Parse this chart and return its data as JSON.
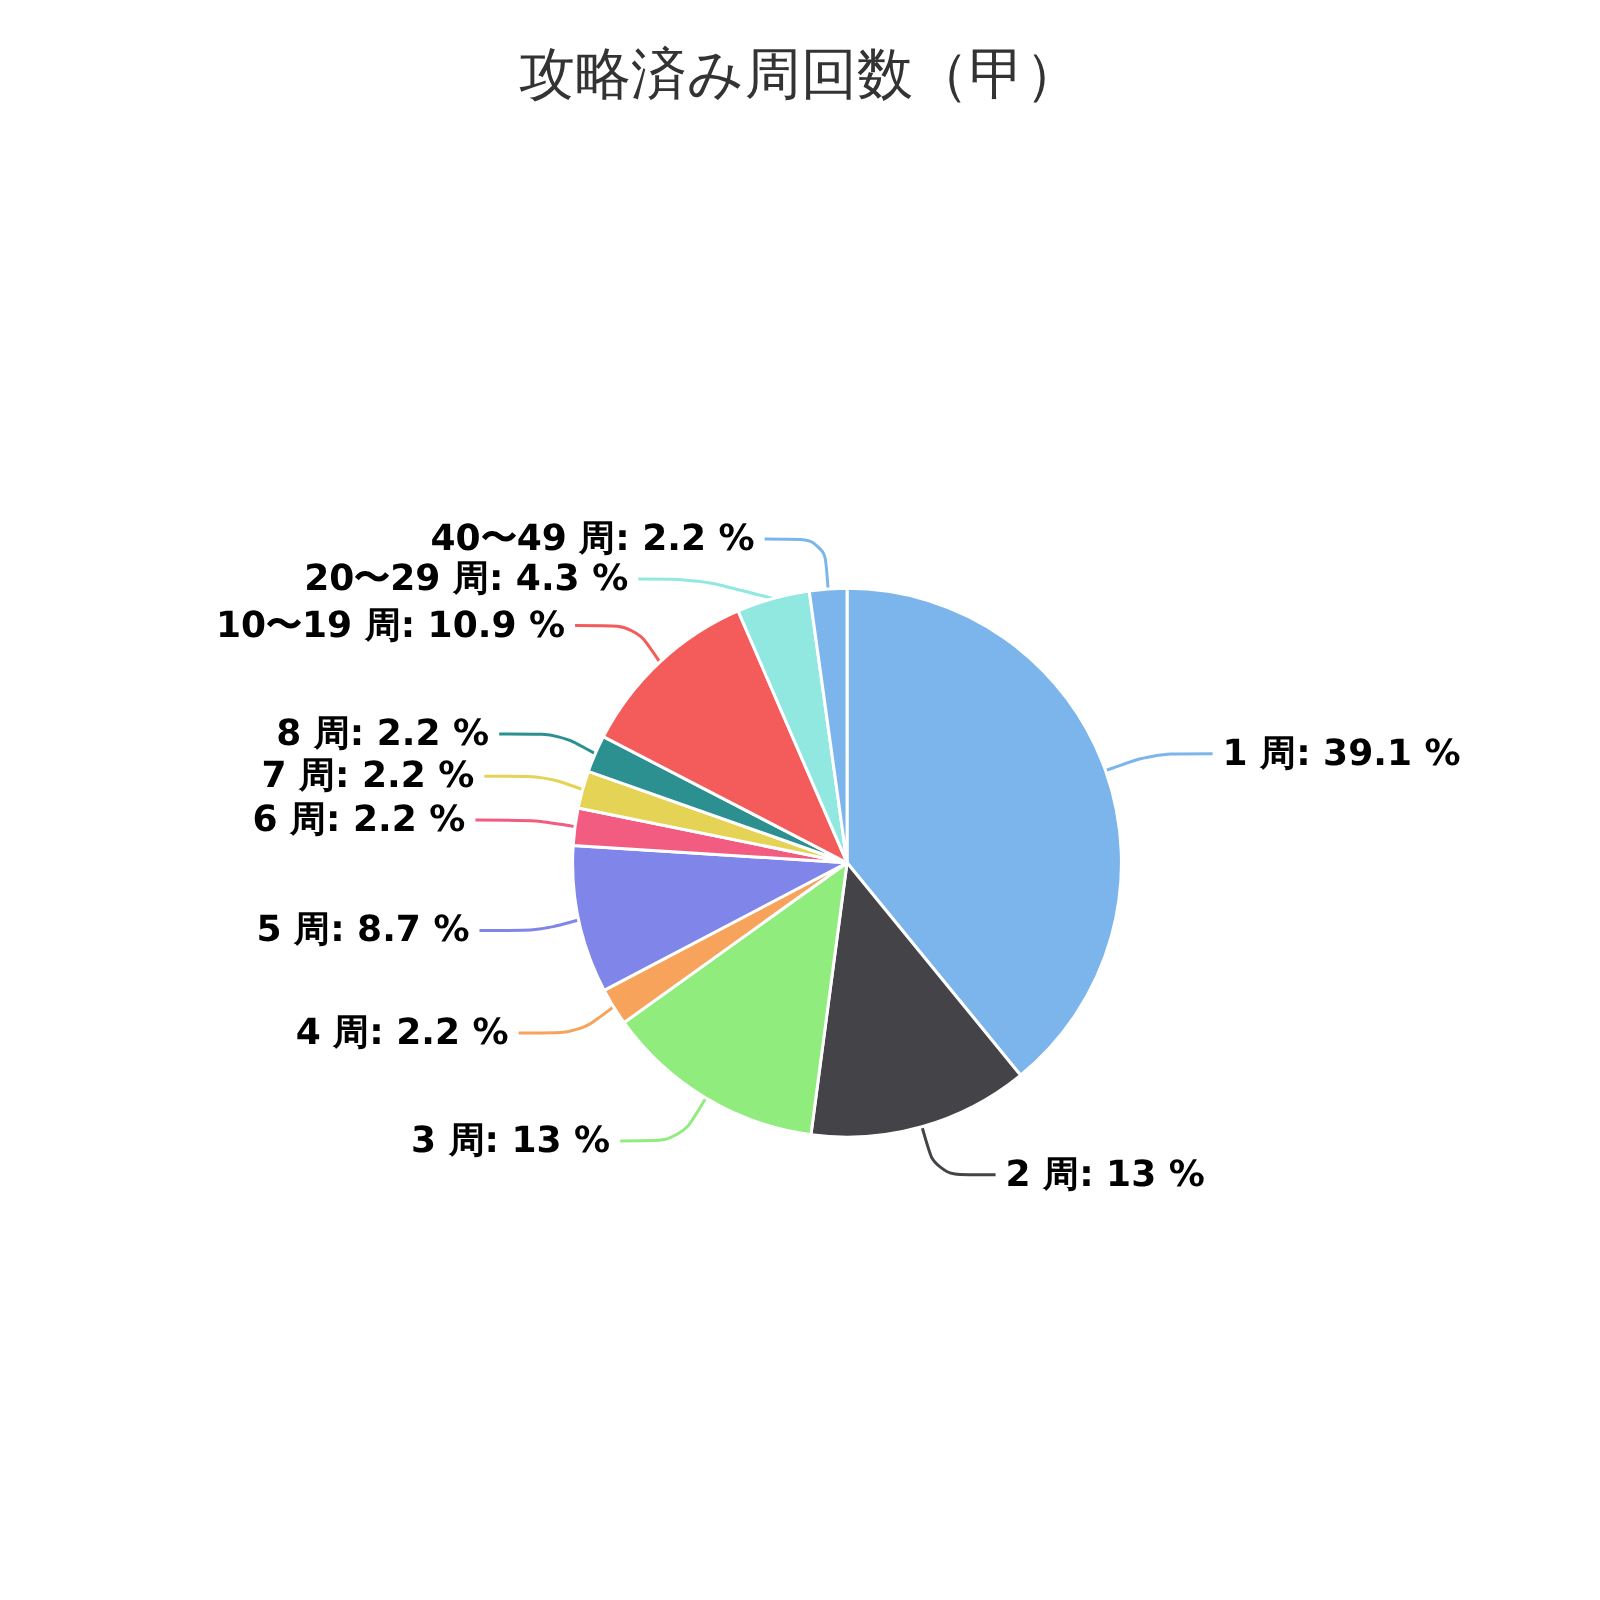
{
  "chart_data": {
    "type": "pie",
    "title": "攻略済み周回数（甲）",
    "categories": [
      "1 周",
      "2 周",
      "3 周",
      "4 周",
      "5 周",
      "6 周",
      "7 周",
      "8 周",
      "10〜19 周",
      "20〜29 周",
      "40〜49 周"
    ],
    "values": [
      39.1,
      13,
      13,
      2.2,
      8.7,
      2.2,
      2.2,
      2.2,
      10.9,
      4.3,
      2.2
    ],
    "value_labels": [
      "39.1 %",
      "13 %",
      "13 %",
      "2.2 %",
      "8.7 %",
      "2.2 %",
      "2.2 %",
      "2.2 %",
      "10.9 %",
      "4.3 %",
      "2.2 %"
    ],
    "colors": [
      "#7cb5ec",
      "#434348",
      "#90ed7d",
      "#f7a35c",
      "#8085e9",
      "#f15c80",
      "#e4d354",
      "#2b908f",
      "#f45b5b",
      "#91e8e1",
      "#7cb5ec"
    ],
    "legend": false
  }
}
